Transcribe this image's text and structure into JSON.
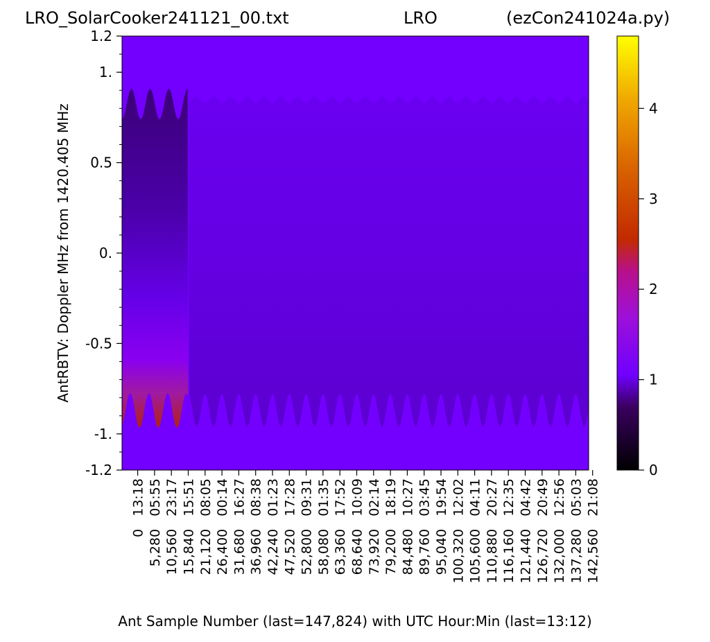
{
  "header": {
    "left": "LRO_SolarCooker241121_00.txt",
    "center": "LRO",
    "right": "(ezCon241024a.py)"
  },
  "chart_data": {
    "type": "heatmap",
    "title": "",
    "ylabel": "AntRBTV:  Doppler MHz from 1420.405 MHz",
    "xlabel": "Ant Sample Number (last=147,824) with UTC Hour:Min (last=13:12)",
    "ylim": [
      -1.2,
      1.2
    ],
    "y_ticks": [
      {
        "value": 1.2,
        "label": "1.2"
      },
      {
        "value": 1.0,
        "label": "1."
      },
      {
        "value": 0.5,
        "label": "0.5"
      },
      {
        "value": 0.0,
        "label": "0."
      },
      {
        "value": -0.5,
        "label": "-0.5"
      },
      {
        "value": -1.0,
        "label": "-1."
      },
      {
        "value": -1.2,
        "label": "-1.2"
      }
    ],
    "x_range": [
      0,
      147824
    ],
    "x_ticks": [
      {
        "sample": 0,
        "sample_label": "0",
        "time_label": "13:18"
      },
      {
        "sample": 5280,
        "sample_label": "5,280",
        "time_label": "05:55"
      },
      {
        "sample": 10560,
        "sample_label": "10,560",
        "time_label": "23:17"
      },
      {
        "sample": 15840,
        "sample_label": "15,840",
        "time_label": "15:51"
      },
      {
        "sample": 21120,
        "sample_label": "21,120",
        "time_label": "08:05"
      },
      {
        "sample": 26400,
        "sample_label": "26,400",
        "time_label": "00:14"
      },
      {
        "sample": 31680,
        "sample_label": "31,680",
        "time_label": "16:27"
      },
      {
        "sample": 36960,
        "sample_label": "36,960",
        "time_label": "08:38"
      },
      {
        "sample": 42240,
        "sample_label": "42,240",
        "time_label": "01:23"
      },
      {
        "sample": 47520,
        "sample_label": "47,520",
        "time_label": "17:28"
      },
      {
        "sample": 52800,
        "sample_label": "52,800",
        "time_label": "09:31"
      },
      {
        "sample": 58080,
        "sample_label": "58,080",
        "time_label": "01:35"
      },
      {
        "sample": 63360,
        "sample_label": "63,360",
        "time_label": "17:52"
      },
      {
        "sample": 68640,
        "sample_label": "68,640",
        "time_label": "10:09"
      },
      {
        "sample": 73920,
        "sample_label": "73,920",
        "time_label": "02:14"
      },
      {
        "sample": 79200,
        "sample_label": "79,200",
        "time_label": "18:19"
      },
      {
        "sample": 84480,
        "sample_label": "84,480",
        "time_label": "10:27"
      },
      {
        "sample": 89760,
        "sample_label": "89,760",
        "time_label": "03:45"
      },
      {
        "sample": 95040,
        "sample_label": "95,040",
        "time_label": "19:54"
      },
      {
        "sample": 100320,
        "sample_label": "100,320",
        "time_label": "12:02"
      },
      {
        "sample": 105600,
        "sample_label": "105,600",
        "time_label": "04:11"
      },
      {
        "sample": 110880,
        "sample_label": "110,880",
        "time_label": "20:27"
      },
      {
        "sample": 116160,
        "sample_label": "116,160",
        "time_label": "12:35"
      },
      {
        "sample": 121440,
        "sample_label": "121,440",
        "time_label": "04:42"
      },
      {
        "sample": 126720,
        "sample_label": "126,720",
        "time_label": "20:49"
      },
      {
        "sample": 132000,
        "sample_label": "132,000",
        "time_label": "12:56"
      },
      {
        "sample": 137280,
        "sample_label": "137,280",
        "time_label": "05:03"
      },
      {
        "sample": 142560,
        "sample_label": "142,560",
        "time_label": "21:08"
      }
    ],
    "colorbar": {
      "colormap": "gnuplot",
      "range": [
        0,
        4.8
      ],
      "ticks": [
        {
          "value": 0,
          "label": "0"
        },
        {
          "value": 1,
          "label": "1"
        },
        {
          "value": 2,
          "label": "2"
        },
        {
          "value": 3,
          "label": "3"
        },
        {
          "value": 4,
          "label": "4"
        }
      ],
      "stops": [
        {
          "value": 0.0,
          "color": "#000000"
        },
        {
          "value": 0.7,
          "color": "#3a0060"
        },
        {
          "value": 1.05,
          "color": "#7000ff"
        },
        {
          "value": 1.7,
          "color": "#9e10d8"
        },
        {
          "value": 2.2,
          "color": "#b8108a"
        },
        {
          "value": 2.55,
          "color": "#c22a00"
        },
        {
          "value": 3.3,
          "color": "#d86000"
        },
        {
          "value": 4.1,
          "color": "#f0a800"
        },
        {
          "value": 4.8,
          "color": "#ffff00"
        }
      ]
    },
    "background_color": "#7300ff",
    "approx_values": {
      "background": 1.05,
      "early_segment_upper": 0.7,
      "early_segment_lower_peak": 2.5,
      "main_band": 0.95
    },
    "segment_boundary_sample": 15840,
    "wave_period_samples": 5280
  }
}
